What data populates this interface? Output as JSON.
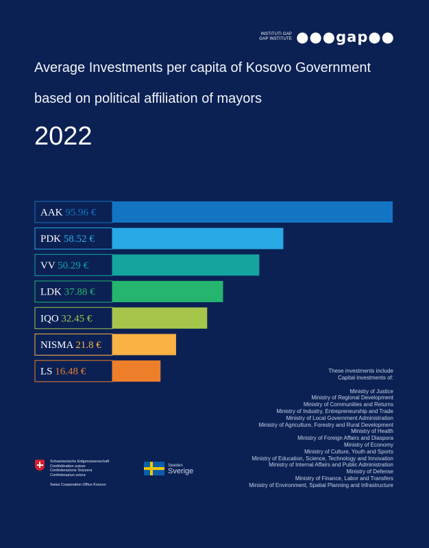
{
  "logo": {
    "line1": "INSTITUTI GAP",
    "line2": "GAP INSTITUTE",
    "mark": "●●●gap●●"
  },
  "header": {
    "title_line1": "Average Investments per capita of Kosovo Government",
    "title_line2": "based on political affiliation of mayors",
    "year": "2022"
  },
  "colors": {
    "background": "#0b2154",
    "label_border": "#3b6cb0"
  },
  "chart_data": {
    "type": "bar",
    "orientation": "horizontal",
    "categories": [
      "AAK",
      "PDK",
      "VV",
      "LDK",
      "IQO",
      "NISMA",
      "LS"
    ],
    "values": [
      95.96,
      58.52,
      50.29,
      37.88,
      32.45,
      21.8,
      16.48
    ],
    "value_labels": [
      "95.96 €",
      "58.52 €",
      "50.29 €",
      "37.88 €",
      "32.45 €",
      "21.8 €",
      "16.48 €"
    ],
    "colors": [
      "#1474c4",
      "#29a9e6",
      "#14a59e",
      "#25b56e",
      "#a5c64a",
      "#f9b243",
      "#ee7f2a"
    ],
    "xlim": [
      0,
      95.96
    ]
  },
  "note": {
    "heading_line1": "These investments include",
    "heading_line2": "Capital investments of:",
    "ministries": [
      "Ministry of Justice",
      "Ministry of Regional Development",
      "Ministry of Communities and Returns",
      "Ministry of Industry, Entrepreneurship and Trade",
      "Ministry of Local Government Administration",
      "Ministry of Agriculture, Forestry and Rural Development",
      "Ministry of Health",
      "Ministry of Foreign Affairs and Diaspora",
      "Ministry of Economy",
      "Ministry of Culture, Youth and Sports",
      "Ministry of Education, Science, Technology and Innovation",
      "Ministry of Internal Affairs and Public Administration",
      "Ministry of Defense",
      "Ministry of Finance, Labor and Transfers",
      "Ministry of Environment, Spatial Planning and Infrastructure"
    ]
  },
  "sponsors": {
    "swiss_lines": [
      "Schweizerische Eidgenossenschaft",
      "Confédération suisse",
      "Confederazione Svizzera",
      "Confederaziun svizra"
    ],
    "swiss_office": "Swiss Cooperation Office Kosovo",
    "sweden_small": "Sweden",
    "sweden_big": "Sverige"
  }
}
